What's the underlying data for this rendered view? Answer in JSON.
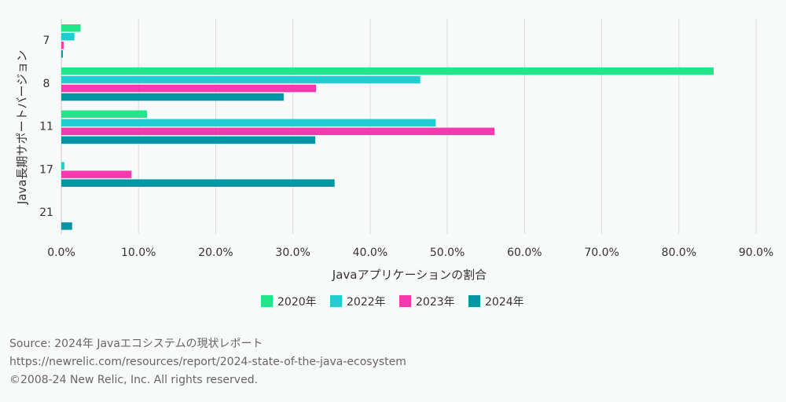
{
  "chart_data": {
    "type": "bar",
    "orientation": "horizontal",
    "categories": [
      "7",
      "8",
      "11",
      "17",
      "21"
    ],
    "series": [
      {
        "name": "2020年",
        "color": "#23e68a",
        "values": [
          2.5,
          84.5,
          11.1,
          0,
          0
        ]
      },
      {
        "name": "2022年",
        "color": "#22cdd2",
        "values": [
          1.7,
          46.5,
          48.5,
          0.4,
          0
        ]
      },
      {
        "name": "2023年",
        "color": "#f53ab0",
        "values": [
          0.3,
          33.0,
          56.1,
          9.1,
          0
        ]
      },
      {
        "name": "2024年",
        "color": "#0096a6",
        "values": [
          0.2,
          28.8,
          32.9,
          35.4,
          1.4
        ]
      }
    ],
    "xlabel": "Javaアプリケーションの割合",
    "ylabel": "Java長期サポートバージョン",
    "xlim": [
      0,
      90
    ],
    "xticks": [
      "0.0%",
      "10.0%",
      "20.0%",
      "30.0%",
      "40.0%",
      "50.0%",
      "60.0%",
      "70.0%",
      "80.0%",
      "90.0%"
    ],
    "grid": "vertical",
    "legend_position": "bottom-center"
  },
  "source": {
    "line1": "Source: 2024年 Javaエコシステムの現状レポート",
    "line2": "https://newrelic.com/resources/report/2024-state-of-the-java-ecosystem",
    "line3": "©2008-24 New Relic, Inc. All rights reserved."
  }
}
